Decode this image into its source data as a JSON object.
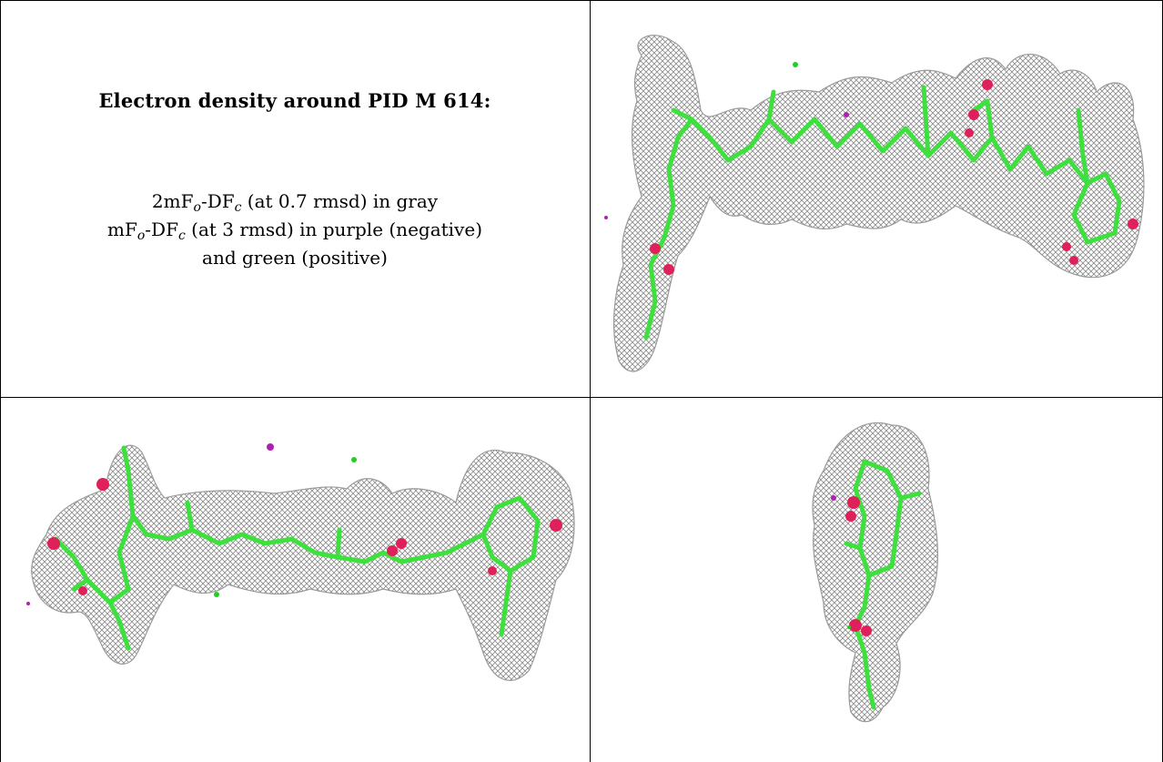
{
  "caption": {
    "title": "Electron density around PID M 614:",
    "line1_prefix": "2mF",
    "line1_sub1": "o",
    "line1_mid": "-DF",
    "line1_sub2": "c",
    "line1_suffix": " (at 0.7 rmsd) in gray",
    "line2_prefix": "mF",
    "line2_sub1": "o",
    "line2_mid": "-DF",
    "line2_sub2": "c",
    "line2_suffix": " (at 3 rmsd) in purple (negative)",
    "line3": "and green (positive)"
  },
  "colors": {
    "mesh": "#8a8a8a",
    "carbon": "#3de03d",
    "oxygen": "#e0205a",
    "negative": "#b020b0",
    "positive": "#20d020",
    "rule": "#000000"
  },
  "panels": [
    "density-view-1",
    "density-view-2",
    "density-view-3"
  ]
}
